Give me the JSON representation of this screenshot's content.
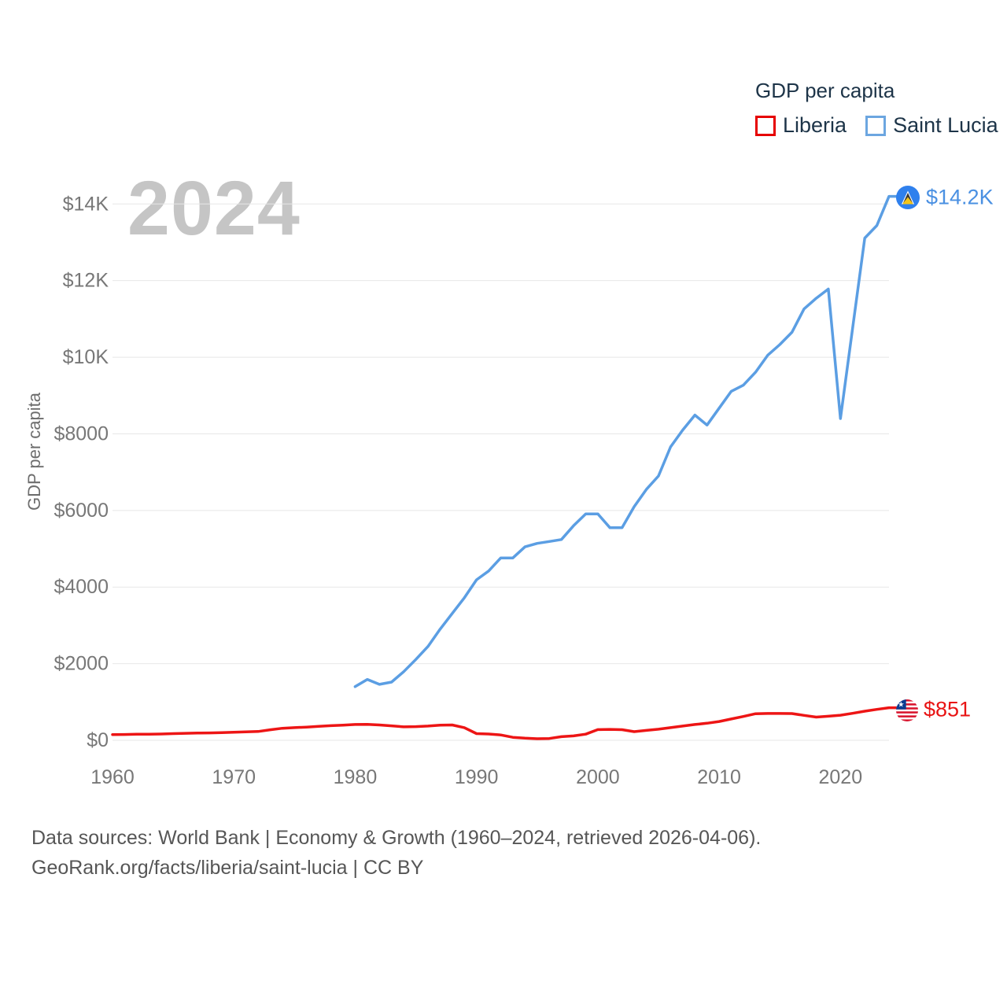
{
  "legend": {
    "title": "GDP per capita",
    "items": [
      {
        "label": "Liberia",
        "color": "#e60000"
      },
      {
        "label": "Saint Lucia",
        "color": "#6ca6e0"
      }
    ]
  },
  "watermark": "2024",
  "y_axis_title": "GDP per capita",
  "end_labels": {
    "saint_lucia": {
      "text": "$14.2K",
      "color": "#4a90e2"
    },
    "liberia": {
      "text": "$851",
      "color": "#e81313"
    }
  },
  "flags": {
    "saint_lucia": "saint-lucia-flag",
    "liberia": "liberia-flag"
  },
  "footer": {
    "line1": "Data sources: World Bank | Economy & Growth (1960–2024, retrieved 2026-04-06).",
    "line2": "GeoRank.org/facts/liberia/saint-lucia | CC BY"
  },
  "chart_data": {
    "type": "line",
    "title": "GDP per capita",
    "xlabel": "",
    "ylabel": "GDP per capita",
    "xlim": [
      1960,
      2024
    ],
    "ylim": [
      0,
      14000
    ],
    "grid": true,
    "legend_position": "top-right",
    "colors": {
      "grid": "#e7e7e7",
      "axis_text": "#777777",
      "watermark": "#c5c5c5"
    },
    "y_ticks": [
      {
        "value": 0,
        "label": "$0"
      },
      {
        "value": 2000,
        "label": "$2000"
      },
      {
        "value": 4000,
        "label": "$4000"
      },
      {
        "value": 6000,
        "label": "$6000"
      },
      {
        "value": 8000,
        "label": "$8000"
      },
      {
        "value": 10000,
        "label": "$10K"
      },
      {
        "value": 12000,
        "label": "$12K"
      },
      {
        "value": 14000,
        "label": "$14K"
      }
    ],
    "x_ticks": [
      {
        "value": 1960,
        "label": "1960"
      },
      {
        "value": 1970,
        "label": "1970"
      },
      {
        "value": 1980,
        "label": "1980"
      },
      {
        "value": 1990,
        "label": "1990"
      },
      {
        "value": 2000,
        "label": "2000"
      },
      {
        "value": 2010,
        "label": "2010"
      },
      {
        "value": 2020,
        "label": "2020"
      }
    ],
    "series": [
      {
        "name": "Liberia",
        "color": "#ed1515",
        "end_value_label": "$851",
        "x": [
          1960,
          1961,
          1962,
          1963,
          1964,
          1965,
          1966,
          1967,
          1968,
          1969,
          1970,
          1971,
          1972,
          1973,
          1974,
          1975,
          1976,
          1977,
          1978,
          1979,
          1980,
          1981,
          1982,
          1983,
          1984,
          1985,
          1986,
          1987,
          1988,
          1989,
          1990,
          1991,
          1992,
          1993,
          1994,
          1995,
          1996,
          1997,
          1998,
          1999,
          2000,
          2001,
          2002,
          2003,
          2004,
          2005,
          2006,
          2007,
          2008,
          2009,
          2010,
          2011,
          2012,
          2013,
          2014,
          2015,
          2016,
          2017,
          2018,
          2019,
          2020,
          2021,
          2022,
          2023,
          2024
        ],
        "values": [
          150,
          152,
          158,
          160,
          165,
          175,
          183,
          188,
          193,
          200,
          212,
          220,
          230,
          275,
          315,
          330,
          345,
          365,
          382,
          396,
          412,
          415,
          400,
          378,
          352,
          358,
          372,
          396,
          400,
          330,
          175,
          165,
          140,
          78,
          55,
          42,
          48,
          95,
          115,
          160,
          280,
          285,
          278,
          225,
          258,
          290,
          330,
          372,
          412,
          445,
          490,
          557,
          623,
          695,
          700,
          700,
          698,
          650,
          605,
          628,
          655,
          705,
          760,
          808,
          851
        ]
      },
      {
        "name": "Saint Lucia",
        "color": "#5b9ee3",
        "end_value_label": "$14.2K",
        "x": [
          1980,
          1981,
          1982,
          1983,
          1984,
          1985,
          1986,
          1987,
          1988,
          1989,
          1990,
          1991,
          1992,
          1993,
          1994,
          1995,
          1996,
          1997,
          1998,
          1999,
          2000,
          2001,
          2002,
          2003,
          2004,
          2005,
          2006,
          2007,
          2008,
          2009,
          2010,
          2011,
          2012,
          2013,
          2014,
          2015,
          2016,
          2017,
          2018,
          2019,
          2020,
          2021,
          2022,
          2023,
          2024
        ],
        "values": [
          1400,
          1590,
          1460,
          1520,
          1790,
          2110,
          2450,
          2900,
          3310,
          3720,
          4190,
          4420,
          4760,
          4760,
          5050,
          5140,
          5190,
          5240,
          5600,
          5910,
          5910,
          5550,
          5550,
          6100,
          6550,
          6900,
          7660,
          8100,
          8490,
          8230,
          8670,
          9110,
          9270,
          9610,
          10050,
          10330,
          10650,
          11260,
          11540,
          11780,
          8400,
          10750,
          13110,
          13440,
          14200
        ]
      }
    ]
  }
}
